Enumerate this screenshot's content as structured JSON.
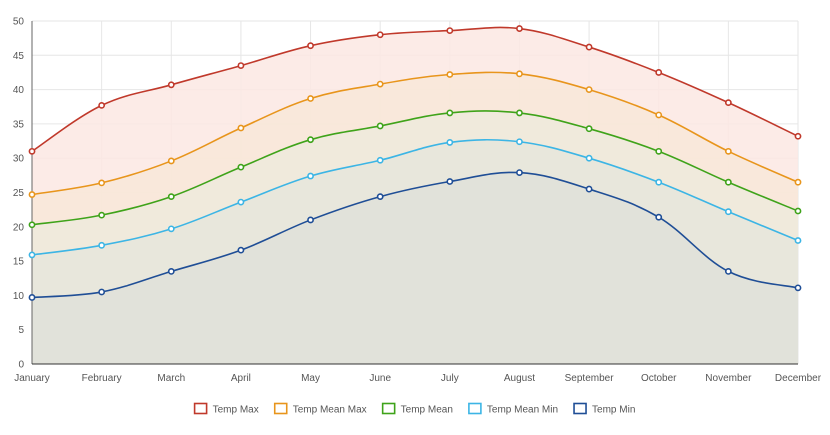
{
  "chart_data": {
    "type": "area",
    "categories": [
      "January",
      "February",
      "March",
      "April",
      "May",
      "June",
      "July",
      "August",
      "September",
      "October",
      "November",
      "December"
    ],
    "ylim": [
      0,
      50
    ],
    "yticks": [
      0,
      5,
      10,
      15,
      20,
      25,
      30,
      35,
      40,
      45,
      50
    ],
    "grid": true,
    "legend_position": "bottom",
    "xlabel": "",
    "ylabel": "",
    "title": "",
    "series": [
      {
        "name": "Temp Max",
        "color": "#c0392b",
        "fill": "#fbe7e3",
        "values": [
          31,
          37.7,
          40.7,
          43.5,
          46.4,
          48,
          48.6,
          48.9,
          46.2,
          42.5,
          38.1,
          33.2
        ]
      },
      {
        "name": "Temp Mean Max",
        "color": "#e8951c",
        "fill": "#f8e8d8",
        "values": [
          24.7,
          26.4,
          29.6,
          34.4,
          38.7,
          40.8,
          42.2,
          42.3,
          40,
          36.3,
          31,
          26.5
        ]
      },
      {
        "name": "Temp Mean",
        "color": "#3fa31a",
        "fill": "#eeeadc",
        "values": [
          20.3,
          21.7,
          24.4,
          28.7,
          32.7,
          34.7,
          36.6,
          36.6,
          34.3,
          31,
          26.5,
          22.3
        ]
      },
      {
        "name": "Temp Mean Min",
        "color": "#3cb5e5",
        "fill": "#e6e6dc",
        "values": [
          15.9,
          17.3,
          19.7,
          23.6,
          27.4,
          29.7,
          32.3,
          32.4,
          30,
          26.5,
          22.2,
          18
        ]
      },
      {
        "name": "Temp Min",
        "color": "#1f4e96",
        "fill": "#dfe0d9",
        "values": [
          9.7,
          10.5,
          13.5,
          16.6,
          21,
          24.4,
          26.6,
          27.9,
          25.5,
          21.4,
          13.5,
          11.1
        ]
      }
    ]
  }
}
